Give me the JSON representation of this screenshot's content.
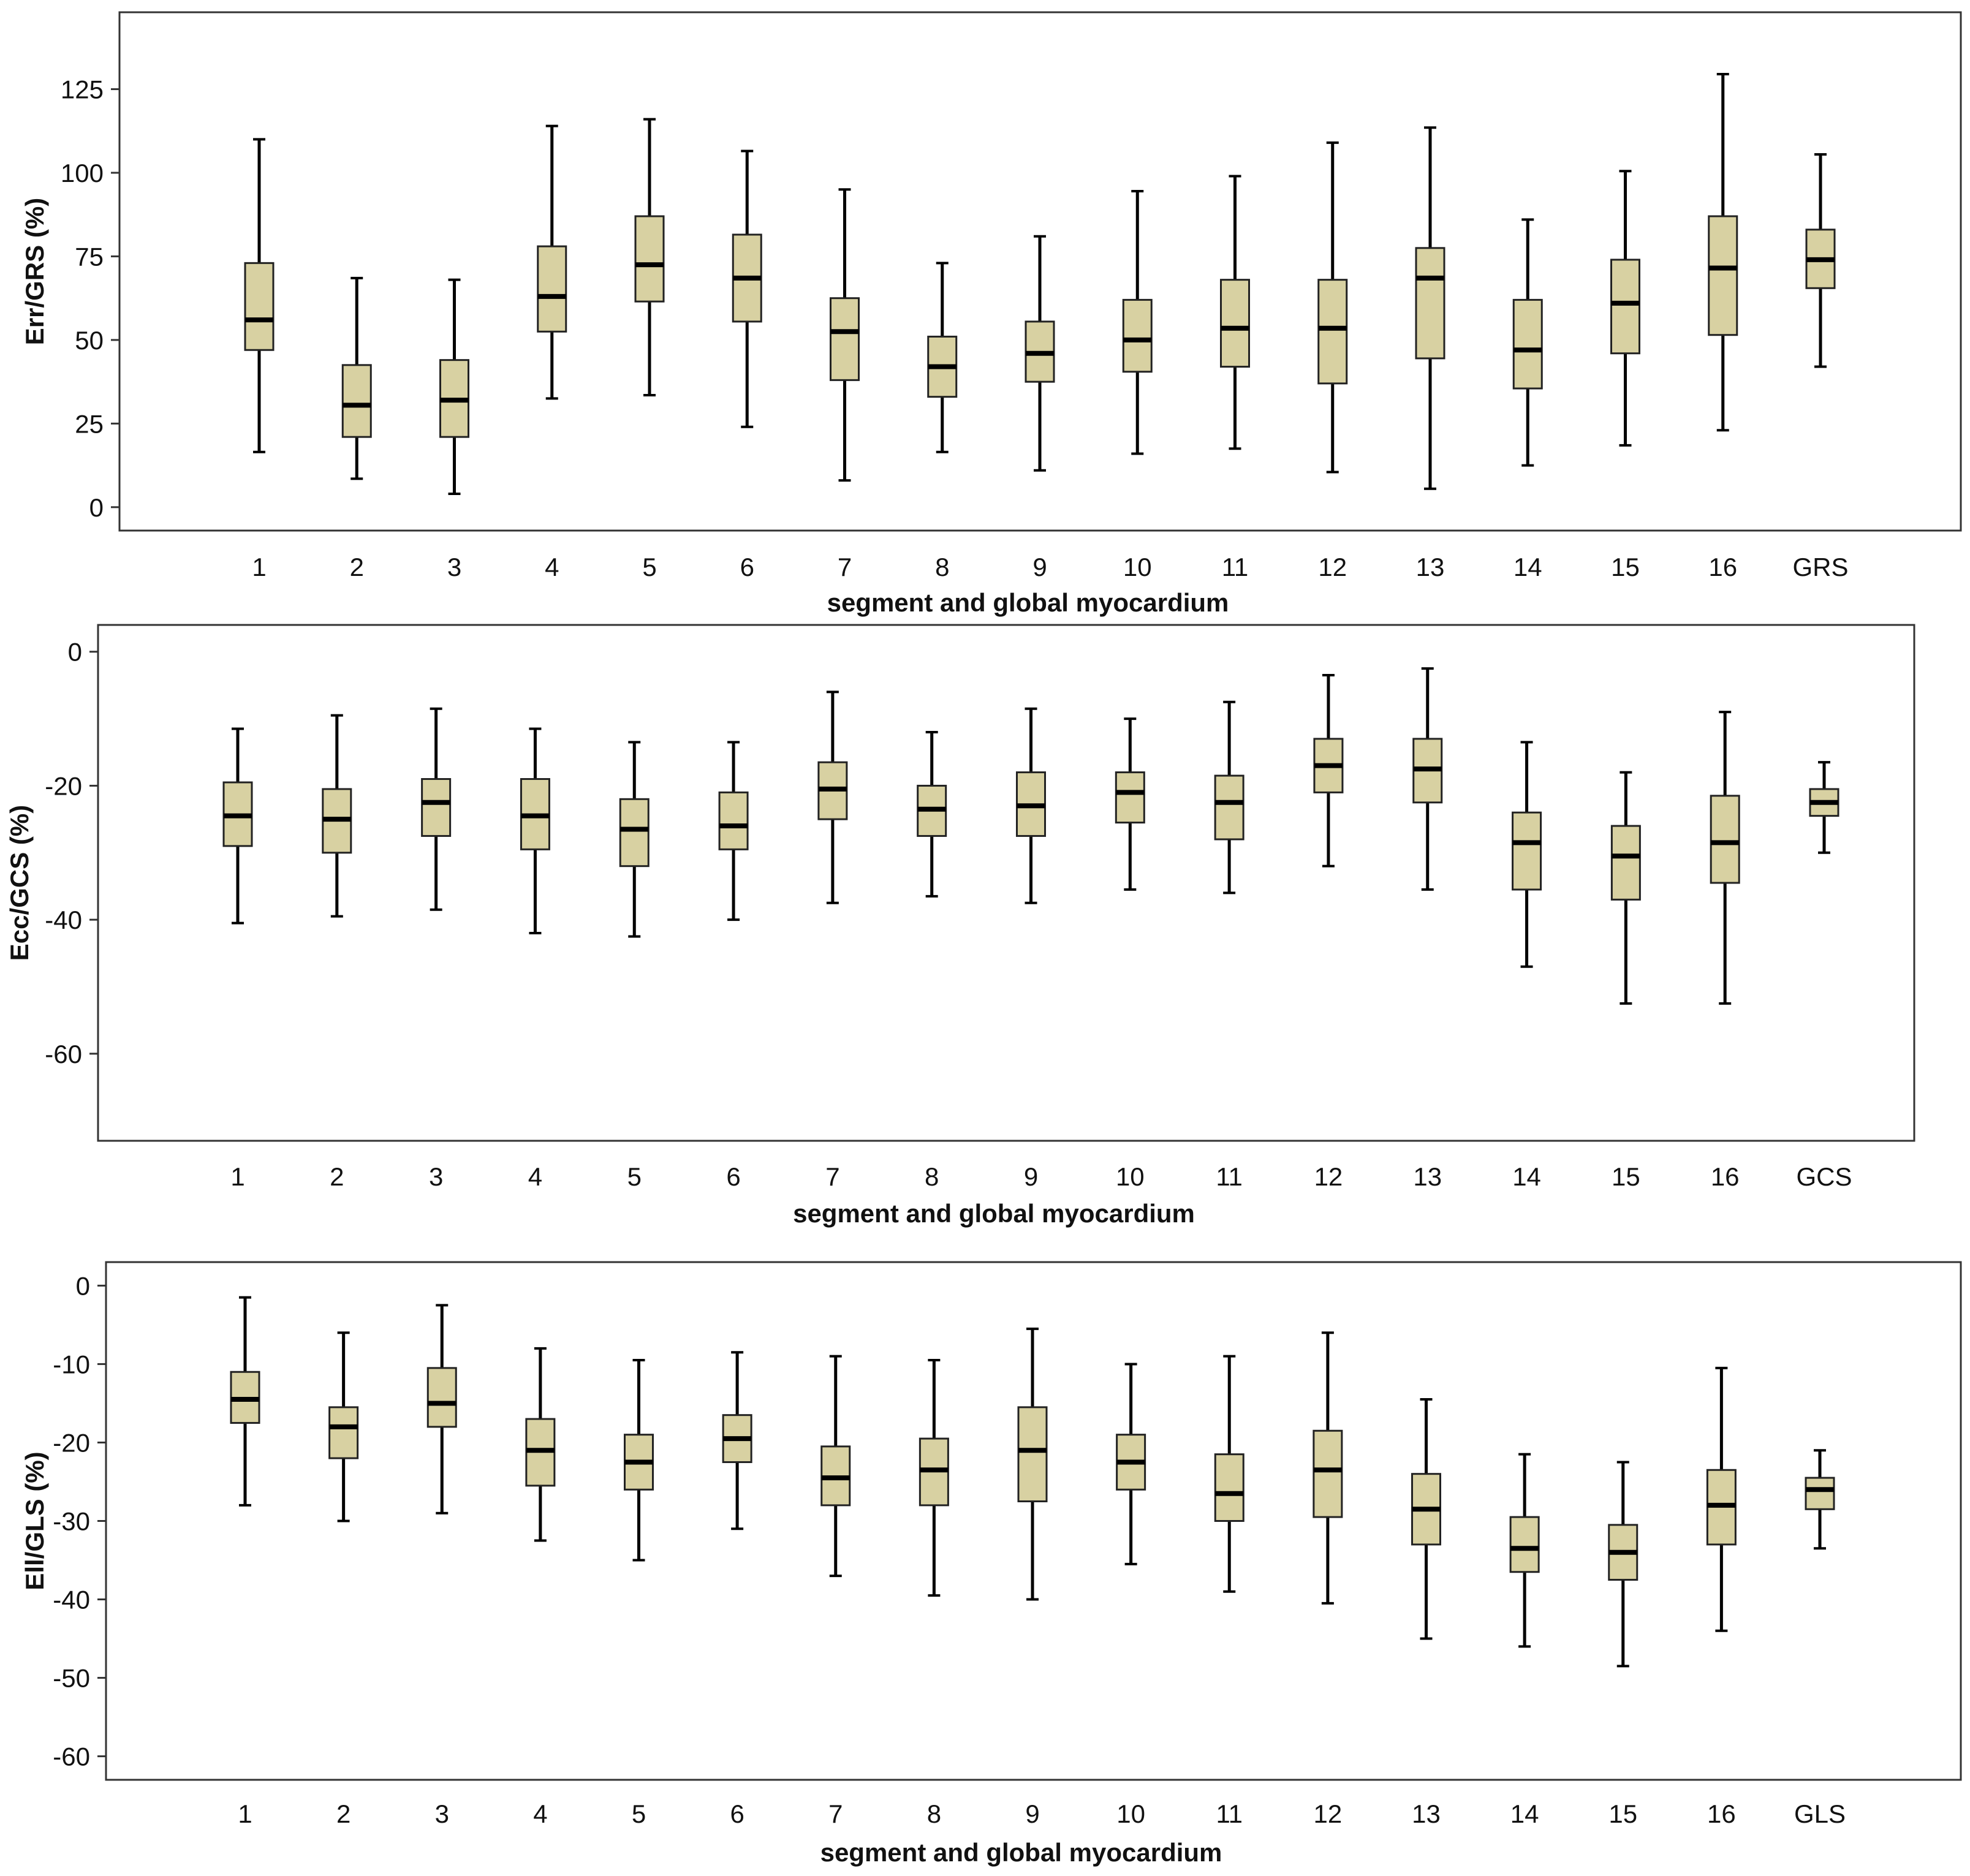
{
  "colors": {
    "box_fill": "#d8d1a2",
    "box_stroke": "#222222",
    "frame": "#333333",
    "text": "#111111"
  },
  "chart_data": [
    {
      "type": "boxplot",
      "title": "",
      "xlabel": "segment and global myocardium",
      "ylabel": "Err/GRS (%)",
      "ylim": [
        -7,
        148
      ],
      "yticks": [
        0,
        25,
        50,
        75,
        100,
        125
      ],
      "ytick_labels": [
        "0",
        "25",
        "50",
        "75",
        "100",
        "125"
      ],
      "grid": false,
      "categories": [
        "1",
        "2",
        "3",
        "4",
        "5",
        "6",
        "7",
        "8",
        "9",
        "10",
        "11",
        "12",
        "13",
        "14",
        "15",
        "16",
        "GRS"
      ],
      "series": [
        {
          "name": "Err/GRS",
          "min": [
            16.5,
            8.5,
            4,
            32.5,
            33.5,
            24,
            8,
            16.5,
            11,
            16,
            17.5,
            10.5,
            5.5,
            12.5,
            18.5,
            23,
            42
          ],
          "q1": [
            47,
            21,
            21,
            52.5,
            61.5,
            55.5,
            38,
            33,
            37.5,
            40.5,
            42,
            37,
            44.5,
            35.5,
            46,
            51.5,
            65.5
          ],
          "median": [
            56,
            30.5,
            32,
            63,
            72.5,
            68.5,
            52.5,
            42,
            46,
            50,
            53.5,
            53.5,
            68.5,
            47,
            61,
            71.5,
            74
          ],
          "q3": [
            73,
            42.5,
            44,
            78,
            87,
            81.5,
            62.5,
            51,
            55.5,
            62,
            68,
            68,
            77.5,
            62,
            74,
            87,
            83
          ],
          "max": [
            110,
            68.5,
            68,
            114,
            116,
            106.5,
            95,
            73,
            81,
            94.5,
            99,
            109,
            113.5,
            86,
            100.5,
            129.5,
            105.5
          ]
        }
      ]
    },
    {
      "type": "boxplot",
      "title": "",
      "xlabel": "segment and global myocardium",
      "ylabel": "Ecc/GCS (%)",
      "ylim": [
        -73,
        4
      ],
      "yticks": [
        0,
        -20,
        -40,
        -60
      ],
      "ytick_labels": [
        "0",
        "-20",
        "-40",
        "-60"
      ],
      "grid": false,
      "categories": [
        "1",
        "2",
        "3",
        "4",
        "5",
        "6",
        "7",
        "8",
        "9",
        "10",
        "11",
        "12",
        "13",
        "14",
        "15",
        "16",
        "GCS"
      ],
      "series": [
        {
          "name": "Ecc/GCS",
          "min": [
            -40.5,
            -39.5,
            -38.5,
            -42,
            -42.5,
            -40,
            -37.5,
            -36.5,
            -37.5,
            -35.5,
            -36,
            -32,
            -35.5,
            -47,
            -52.5,
            -52.5,
            -30
          ],
          "q1": [
            -29,
            -30,
            -27.5,
            -29.5,
            -32,
            -29.5,
            -25,
            -27.5,
            -27.5,
            -25.5,
            -28,
            -21,
            -22.5,
            -35.5,
            -37,
            -34.5,
            -24.5
          ],
          "median": [
            -24.5,
            -25,
            -22.5,
            -24.5,
            -26.5,
            -26,
            -20.5,
            -23.5,
            -23,
            -21,
            -22.5,
            -17,
            -17.5,
            -28.5,
            -30.5,
            -28.5,
            -22.5
          ],
          "q3": [
            -19.5,
            -20.5,
            -19,
            -19,
            -22,
            -21,
            -16.5,
            -20,
            -18,
            -18,
            -18.5,
            -13,
            -13,
            -24,
            -26,
            -21.5,
            -20.5
          ],
          "max": [
            -11.5,
            -9.5,
            -8.5,
            -11.5,
            -13.5,
            -13.5,
            -6,
            -12,
            -8.5,
            -10,
            -7.5,
            -3.5,
            -2.5,
            -13.5,
            -18,
            -9,
            -16.5
          ]
        }
      ]
    },
    {
      "type": "boxplot",
      "title": "",
      "xlabel": "segment and global myocardium",
      "ylabel": "Ell/GLS (%)",
      "ylim": [
        -63,
        3
      ],
      "yticks": [
        0,
        -10,
        -20,
        -30,
        -40,
        -50,
        -60
      ],
      "ytick_labels": [
        "0",
        "-10",
        "-20",
        "-30",
        "-40",
        "-50",
        "-60"
      ],
      "grid": false,
      "categories": [
        "1",
        "2",
        "3",
        "4",
        "5",
        "6",
        "7",
        "8",
        "9",
        "10",
        "11",
        "12",
        "13",
        "14",
        "15",
        "16",
        "GLS"
      ],
      "series": [
        {
          "name": "Ell/GLS",
          "min": [
            -28,
            -30,
            -29,
            -32.5,
            -35,
            -31,
            -37,
            -39.5,
            -40,
            -35.5,
            -39,
            -40.5,
            -45,
            -46,
            -48.5,
            -44,
            -33.5
          ],
          "q1": [
            -17.5,
            -22,
            -18,
            -25.5,
            -26,
            -22.5,
            -28,
            -28,
            -27.5,
            -26,
            -30,
            -29.5,
            -33,
            -36.5,
            -37.5,
            -33,
            -28.5
          ],
          "median": [
            -14.5,
            -18,
            -15,
            -21,
            -22.5,
            -19.5,
            -24.5,
            -23.5,
            -21,
            -22.5,
            -26.5,
            -23.5,
            -28.5,
            -33.5,
            -34,
            -28,
            -26
          ],
          "q3": [
            -11,
            -15.5,
            -10.5,
            -17,
            -19,
            -16.5,
            -20.5,
            -19.5,
            -15.5,
            -19,
            -21.5,
            -18.5,
            -24,
            -29.5,
            -30.5,
            -23.5,
            -24.5
          ],
          "max": [
            -1.5,
            -6,
            -2.5,
            -8,
            -9.5,
            -8.5,
            -9,
            -9.5,
            -5.5,
            -10,
            -9,
            -6,
            -14.5,
            -21.5,
            -22.5,
            -10.5,
            -21
          ]
        }
      ]
    }
  ]
}
